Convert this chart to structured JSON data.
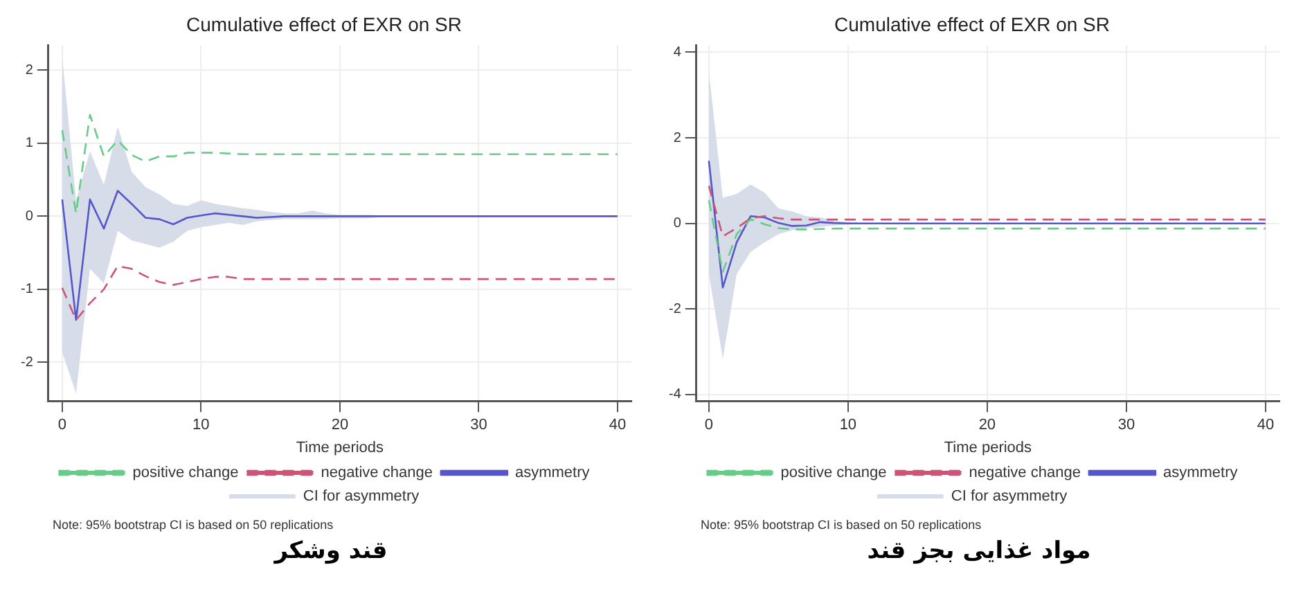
{
  "chart_data": [
    {
      "type": "line",
      "title": "Cumulative effect of EXR on SR",
      "xlabel": "Time periods",
      "x": [
        0,
        1,
        2,
        3,
        4,
        5,
        6,
        7,
        8,
        9,
        10,
        11,
        12,
        13,
        14,
        15,
        16,
        17,
        18,
        19,
        20,
        21,
        22,
        23,
        24,
        25,
        26,
        27,
        28,
        29,
        30,
        31,
        32,
        33,
        34,
        35,
        36,
        37,
        38,
        39,
        40
      ],
      "xlim": [
        -1,
        41
      ],
      "xticks": [
        0,
        10,
        20,
        30,
        40
      ],
      "ylim": [
        -2.53,
        2.34
      ],
      "yticks": [
        -2,
        -1,
        0,
        1,
        2
      ],
      "grid": true,
      "legend": "bottom",
      "marker": "none",
      "series": [
        {
          "name": "positive change",
          "color": "#66cc88",
          "line_style": "dashed",
          "values": [
            1.18,
            0.04,
            1.39,
            0.82,
            1.04,
            0.84,
            0.75,
            0.82,
            0.82,
            0.87,
            0.87,
            0.87,
            0.86,
            0.85,
            0.85,
            0.85,
            0.85,
            0.85,
            0.85,
            0.85,
            0.85,
            0.85,
            0.85,
            0.85,
            0.85,
            0.85,
            0.85,
            0.85,
            0.85,
            0.85,
            0.85,
            0.85,
            0.85,
            0.85,
            0.85,
            0.85,
            0.85,
            0.85,
            0.85,
            0.85,
            0.85
          ]
        },
        {
          "name": "negative change",
          "color": "#cc5577",
          "line_style": "dashed",
          "values": [
            -0.98,
            -1.42,
            -1.19,
            -1.0,
            -0.68,
            -0.72,
            -0.82,
            -0.9,
            -0.94,
            -0.9,
            -0.86,
            -0.83,
            -0.83,
            -0.86,
            -0.86,
            -0.86,
            -0.86,
            -0.86,
            -0.86,
            -0.86,
            -0.86,
            -0.86,
            -0.86,
            -0.86,
            -0.86,
            -0.86,
            -0.86,
            -0.86,
            -0.86,
            -0.86,
            -0.86,
            -0.86,
            -0.86,
            -0.86,
            -0.86,
            -0.86,
            -0.86,
            -0.86,
            -0.86,
            -0.86,
            -0.86
          ]
        },
        {
          "name": "asymmetry",
          "color": "#5555cc",
          "line_style": "solid",
          "values": [
            0.23,
            -1.42,
            0.23,
            -0.17,
            0.35,
            0.17,
            -0.02,
            -0.04,
            -0.11,
            -0.02,
            0.01,
            0.04,
            0.02,
            0,
            -0.02,
            -0.01,
            0,
            0,
            0,
            0,
            0,
            0,
            0,
            0,
            0,
            0,
            0,
            0,
            0,
            0,
            0,
            0,
            0,
            0,
            0,
            0,
            0,
            0,
            0,
            0,
            0
          ],
          "lower": [
            -1.86,
            -2.43,
            -0.72,
            -0.92,
            -0.2,
            -0.33,
            -0.38,
            -0.43,
            -0.35,
            -0.2,
            -0.15,
            -0.12,
            -0.09,
            -0.12,
            -0.07,
            -0.05,
            -0.04,
            -0.04,
            -0.04,
            -0.04,
            -0.03,
            -0.03,
            -0.03,
            -0.01,
            -0.01,
            -0.01,
            -0.01,
            -0.01,
            0,
            0,
            0,
            0,
            0,
            0,
            0,
            0,
            0,
            0,
            0,
            0,
            0
          ],
          "upper": [
            2.19,
            0.22,
            0.89,
            0.43,
            1.23,
            0.61,
            0.4,
            0.3,
            0.17,
            0.14,
            0.22,
            0.17,
            0.14,
            0.11,
            0.09,
            0.06,
            0.04,
            0.04,
            0.08,
            0.04,
            0.02,
            0.02,
            0.02,
            0.01,
            0.01,
            0.01,
            0.01,
            0.01,
            0,
            0,
            0,
            0,
            0,
            0,
            0,
            0,
            0,
            0,
            0,
            0,
            0
          ]
        },
        {
          "name": "CI for asymmetry",
          "type": "area",
          "color": "#d6dde9",
          "values": [
            null,
            null,
            null,
            null,
            null,
            null,
            null,
            null,
            null,
            null,
            null,
            null,
            null,
            null,
            null,
            null,
            null,
            null,
            null,
            null,
            null,
            null,
            null,
            null,
            null,
            null,
            null,
            null,
            null,
            null,
            null,
            null,
            null,
            null,
            null,
            null,
            null,
            null,
            null,
            null,
            null
          ]
        }
      ],
      "annotations": [
        "Note: 95% bootstrap CI is based on 50 replications",
        "قند وشکر"
      ]
    },
    {
      "type": "line",
      "title": "Cumulative effect of EXR on SR",
      "xlabel": "Time periods",
      "x": [
        0,
        1,
        2,
        3,
        4,
        5,
        6,
        7,
        8,
        9,
        10,
        11,
        12,
        13,
        14,
        15,
        16,
        17,
        18,
        19,
        20,
        21,
        22,
        23,
        24,
        25,
        26,
        27,
        28,
        29,
        30,
        31,
        32,
        33,
        34,
        35,
        36,
        37,
        38,
        39,
        40
      ],
      "xlim": [
        -0.9,
        41
      ],
      "xticks": [
        0,
        10,
        20,
        30,
        40
      ],
      "ylim": [
        -4.15,
        4.16
      ],
      "yticks": [
        -4,
        -2,
        0,
        2,
        4
      ],
      "grid": true,
      "legend": "bottom",
      "marker": "none",
      "series": [
        {
          "name": "positive change",
          "color": "#66cc88",
          "line_style": "dashed",
          "values": [
            0.54,
            -1.13,
            -0.25,
            0.1,
            -0.02,
            -0.11,
            -0.14,
            -0.14,
            -0.13,
            -0.12,
            -0.12,
            -0.12,
            -0.12,
            -0.12,
            -0.12,
            -0.12,
            -0.12,
            -0.12,
            -0.12,
            -0.12,
            -0.12,
            -0.12,
            -0.12,
            -0.12,
            -0.12,
            -0.12,
            -0.12,
            -0.12,
            -0.12,
            -0.12,
            -0.12,
            -0.12,
            -0.12,
            -0.12,
            -0.12,
            -0.12,
            -0.12,
            -0.12,
            -0.12,
            -0.12,
            -0.12
          ]
        },
        {
          "name": "negative change",
          "color": "#cc5577",
          "line_style": "dashed",
          "values": [
            0.88,
            -0.3,
            -0.11,
            0.12,
            0.17,
            0.12,
            0.09,
            0.09,
            0.09,
            0.09,
            0.09,
            0.09,
            0.09,
            0.09,
            0.09,
            0.09,
            0.09,
            0.09,
            0.09,
            0.09,
            0.09,
            0.09,
            0.09,
            0.09,
            0.09,
            0.09,
            0.09,
            0.09,
            0.09,
            0.09,
            0.09,
            0.09,
            0.09,
            0.09,
            0.09,
            0.09,
            0.09,
            0.09,
            0.09,
            0.09,
            0.09
          ]
        },
        {
          "name": "asymmetry",
          "color": "#5555cc",
          "line_style": "solid",
          "values": [
            1.46,
            -1.5,
            -0.44,
            0.17,
            0.14,
            0.01,
            -0.06,
            -0.05,
            0.03,
            0.01,
            0,
            0,
            0,
            0,
            0,
            0,
            0,
            0,
            0,
            0,
            0,
            0,
            0,
            0,
            0,
            0,
            0,
            0,
            0,
            0,
            0,
            0,
            0,
            0,
            0,
            0,
            0,
            0,
            0,
            0,
            0
          ],
          "lower": [
            -1.18,
            -3.17,
            -1.18,
            -0.67,
            -0.44,
            -0.25,
            -0.16,
            -0.11,
            -0.08,
            -0.05,
            -0.03,
            -0.01,
            -0.01,
            -0.01,
            -0.01,
            -0.01,
            -0.01,
            -0.01,
            -0.01,
            -0.01,
            -0.01,
            -0.01,
            -0.01,
            -0.01,
            -0.01,
            -0.01,
            -0.01,
            -0.01,
            -0.01,
            -0.01,
            -0.01,
            -0.01,
            -0.01,
            -0.01,
            -0.01,
            -0.01,
            -0.01,
            -0.01,
            -0.01,
            -0.01,
            -0.01
          ],
          "upper": [
            3.55,
            0.6,
            0.69,
            0.91,
            0.72,
            0.35,
            0.28,
            0.17,
            0.14,
            0.07,
            0.03,
            0.01,
            0.01,
            0.01,
            0.01,
            0.01,
            0.01,
            0.01,
            0.01,
            0.01,
            0.01,
            0.01,
            0.01,
            0.01,
            0.01,
            0.01,
            0.01,
            0.01,
            0.01,
            0.01,
            0.01,
            0.01,
            0.01,
            0.01,
            0.01,
            0.01,
            0.01,
            0.01,
            0.01,
            0.01,
            0.01
          ]
        },
        {
          "name": "CI for asymmetry",
          "type": "area",
          "color": "#d6dde9",
          "values": [
            null,
            null,
            null,
            null,
            null,
            null,
            null,
            null,
            null,
            null,
            null,
            null,
            null,
            null,
            null,
            null,
            null,
            null,
            null,
            null,
            null,
            null,
            null,
            null,
            null,
            null,
            null,
            null,
            null,
            null,
            null,
            null,
            null,
            null,
            null,
            null,
            null,
            null,
            null,
            null,
            null
          ]
        }
      ],
      "annotations": [
        "Note: 95% bootstrap CI is based on 50 replications",
        "مواد غذایی بجز قند"
      ]
    }
  ]
}
